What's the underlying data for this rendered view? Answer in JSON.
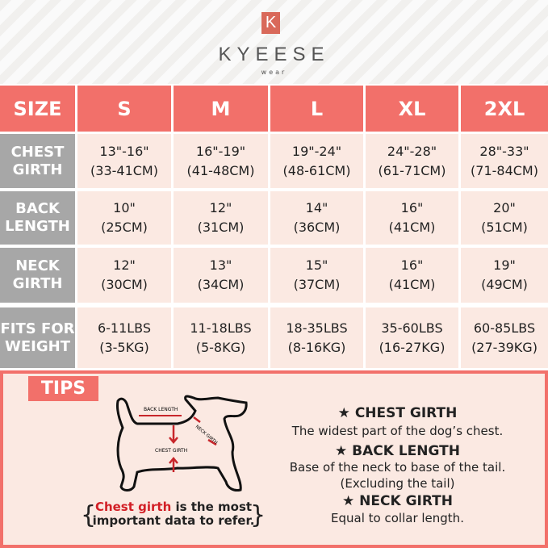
{
  "brand": {
    "logo_letter": "K",
    "name": "KYEESE",
    "sub": "wear"
  },
  "colors": {
    "accent": "#f2706a",
    "label_gray": "#a7a7a7",
    "cell_bg": "#fbe9e2",
    "highlight_red": "#d21f26"
  },
  "table": {
    "corner": "SIZE",
    "sizes": [
      "S",
      "M",
      "L",
      "XL",
      "2XL"
    ],
    "rows": [
      {
        "label": [
          "CHEST",
          "GIRTH"
        ],
        "values": [
          [
            "13\"-16\"",
            "(33-41CM)"
          ],
          [
            "16\"-19\"",
            "(41-48CM)"
          ],
          [
            "19\"-24\"",
            "(48-61CM)"
          ],
          [
            "24\"-28\"",
            "(61-71CM)"
          ],
          [
            "28\"-33\"",
            "(71-84CM)"
          ]
        ]
      },
      {
        "label": [
          "BACK",
          "LENGTH"
        ],
        "values": [
          [
            "10\"",
            "(25CM)"
          ],
          [
            "12\"",
            "(31CM)"
          ],
          [
            "14\"",
            "(36CM)"
          ],
          [
            "16\"",
            "(41CM)"
          ],
          [
            "20\"",
            "(51CM)"
          ]
        ]
      },
      {
        "label": [
          "NECK",
          "GIRTH"
        ],
        "values": [
          [
            "12\"",
            "(30CM)"
          ],
          [
            "13\"",
            "(34CM)"
          ],
          [
            "15\"",
            "(37CM)"
          ],
          [
            "16\"",
            "(41CM)"
          ],
          [
            "19\"",
            "(49CM)"
          ]
        ]
      },
      {
        "label": [
          "FITS FOR",
          "WEIGHT"
        ],
        "values": [
          [
            "6-11LBS",
            "(3-5KG)"
          ],
          [
            "11-18LBS",
            "(5-8KG)"
          ],
          [
            "18-35LBS",
            "(8-16KG)"
          ],
          [
            "35-60LBS",
            "(16-27KG)"
          ],
          [
            "60-85LBS",
            "(27-39KG)"
          ]
        ]
      }
    ]
  },
  "tips": {
    "badge": "TIPS",
    "diagram": {
      "back_length": "BACK LENGTH",
      "neck_girth": "NECK GIRTH",
      "chest_girth": "CHEST GIRTH"
    },
    "note_red": "Chest girth",
    "note_rest1": " is the most",
    "note_line2": "important data to refer.",
    "items": [
      {
        "title": "CHEST GIRTH",
        "desc": [
          "The widest part of the dog’s chest."
        ]
      },
      {
        "title": "BACK LENGTH",
        "desc": [
          "Base of the neck to base of the tail.",
          "(Excluding the tail)"
        ]
      },
      {
        "title": "NECK GIRTH",
        "desc": [
          "Equal to collar length."
        ]
      }
    ]
  }
}
